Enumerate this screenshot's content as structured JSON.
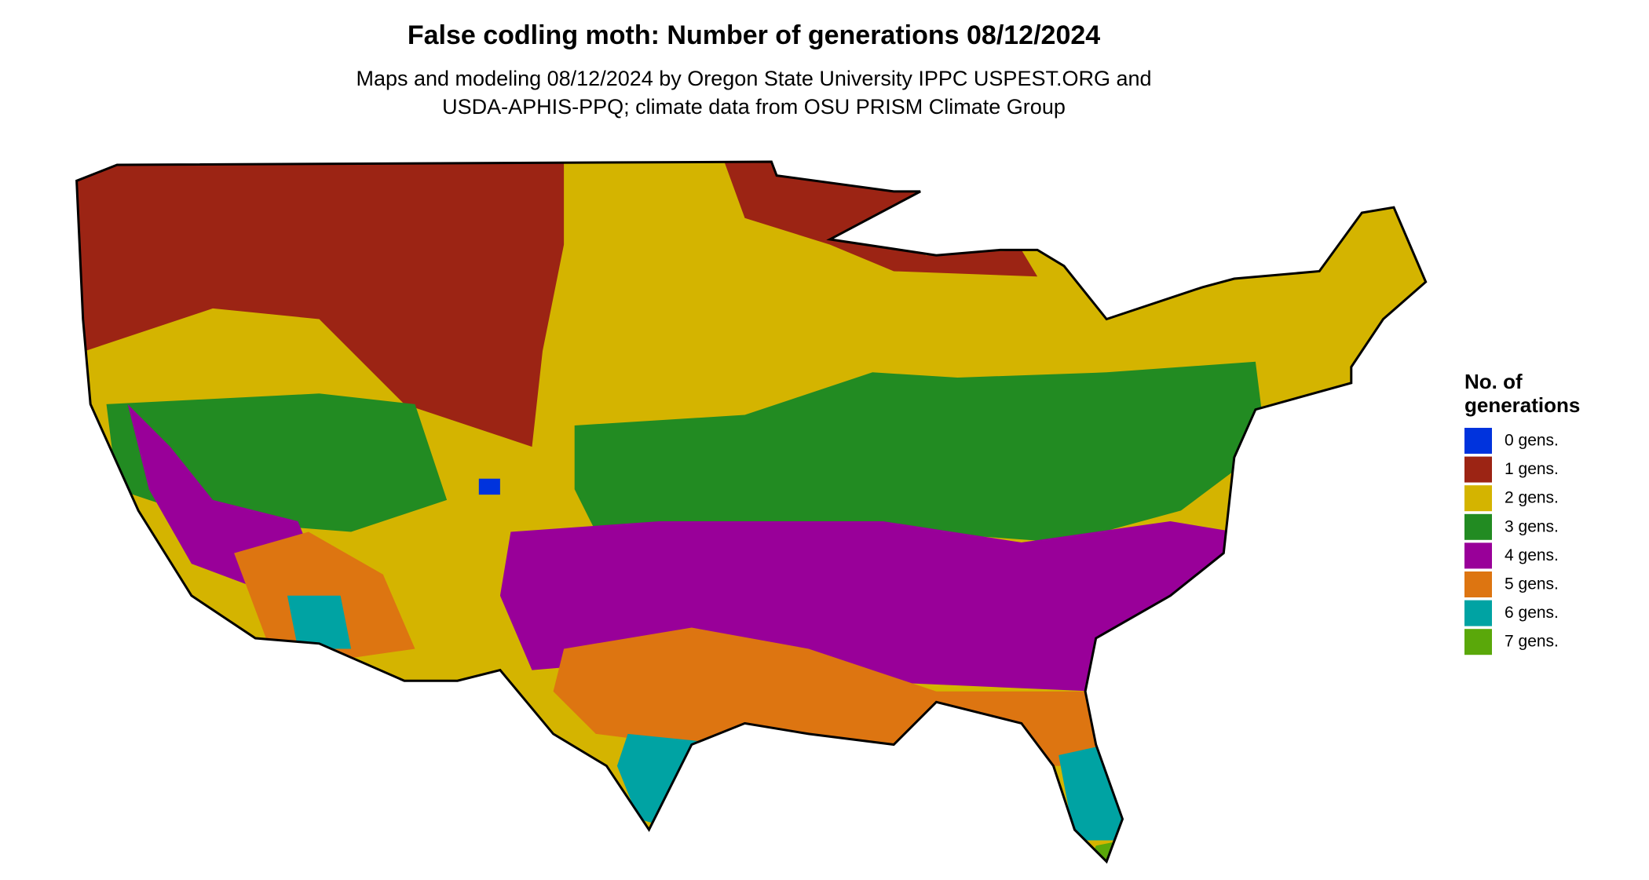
{
  "header": {
    "title": "False codling moth: Number of generations 08/12/2024",
    "subtitle": [
      "Maps and modeling 08/12/2024 by Oregon State University IPPC USPEST.ORG and",
      "USDA-APHIS-PPQ; climate data from OSU PRISM Climate Group"
    ]
  },
  "legend": {
    "title": [
      "No. of",
      "generations"
    ],
    "items": [
      {
        "label": "0 gens.",
        "color": "#0033dd"
      },
      {
        "label": "1 gens.",
        "color": "#9c2414"
      },
      {
        "label": "2 gens.",
        "color": "#d4b400"
      },
      {
        "label": "3 gens.",
        "color": "#228b22"
      },
      {
        "label": "4 gens.",
        "color": "#990099"
      },
      {
        "label": "5 gens.",
        "color": "#dd7511"
      },
      {
        "label": "6 gens.",
        "color": "#00a3a3"
      },
      {
        "label": "7 gens.",
        "color": "#5aa80a"
      }
    ]
  }
}
